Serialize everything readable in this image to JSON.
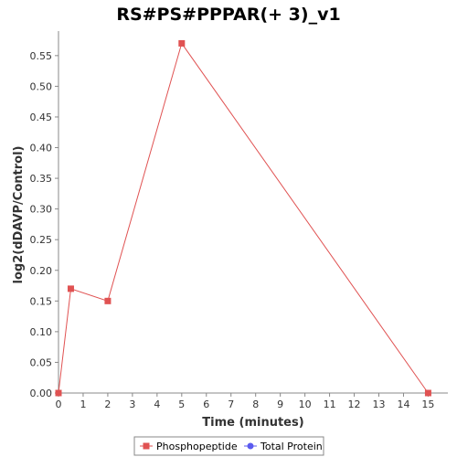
{
  "chart_data": {
    "type": "line",
    "title": "RS#PS#PPPAR(+ 3)_v1",
    "xlabel": "Time (minutes)",
    "ylabel": "log2(dDAVP/Control)",
    "xlim": [
      0,
      15.8
    ],
    "ylim": [
      0,
      0.59
    ],
    "x_ticks": [
      0,
      1,
      2,
      3,
      4,
      5,
      6,
      7,
      8,
      9,
      10,
      11,
      12,
      13,
      14,
      15
    ],
    "y_ticks": [
      0.0,
      0.05,
      0.1,
      0.15,
      0.2,
      0.25,
      0.3,
      0.35,
      0.4,
      0.45,
      0.5,
      0.55
    ],
    "grid": false,
    "legend_position": "bottom",
    "series": [
      {
        "name": "Phosphopeptide",
        "color": "#e05252",
        "marker": "square",
        "points": [
          {
            "x": 0,
            "y": 0.0
          },
          {
            "x": 0.5,
            "y": 0.17
          },
          {
            "x": 2,
            "y": 0.15
          },
          {
            "x": 5,
            "y": 0.57
          },
          {
            "x": 15,
            "y": 0.0
          }
        ]
      },
      {
        "name": "Total Protein",
        "color": "#5b5bef",
        "marker": "circle",
        "points": []
      }
    ]
  }
}
